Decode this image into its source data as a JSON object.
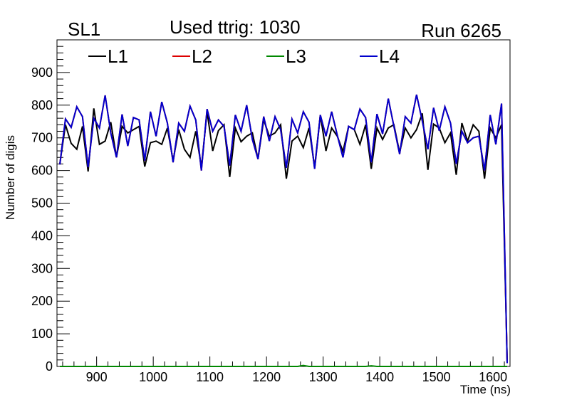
{
  "header": {
    "superlayer": "SL1",
    "title": "Used ttrig: 1030",
    "run": "Run 6265"
  },
  "chart_data": {
    "type": "line",
    "title": "Used ttrig: 1030",
    "xlabel": "Time (ns)",
    "ylabel": "Number of digis",
    "xlim": [
      830,
      1630
    ],
    "ylim": [
      0,
      1000
    ],
    "x_ticks": [
      900,
      1000,
      1100,
      1200,
      1300,
      1400,
      1500,
      1600
    ],
    "y_ticks": [
      0,
      100,
      200,
      300,
      400,
      500,
      600,
      700,
      800,
      900
    ],
    "grid": false,
    "legend_position": "top",
    "x": [
      835,
      845,
      855,
      865,
      875,
      885,
      895,
      905,
      915,
      925,
      935,
      945,
      955,
      965,
      975,
      985,
      995,
      1005,
      1015,
      1025,
      1035,
      1045,
      1055,
      1065,
      1075,
      1085,
      1095,
      1105,
      1115,
      1125,
      1135,
      1145,
      1155,
      1165,
      1175,
      1185,
      1195,
      1205,
      1215,
      1225,
      1235,
      1245,
      1255,
      1265,
      1275,
      1285,
      1295,
      1305,
      1315,
      1325,
      1335,
      1345,
      1355,
      1365,
      1375,
      1385,
      1395,
      1405,
      1415,
      1425,
      1435,
      1445,
      1455,
      1465,
      1475,
      1485,
      1495,
      1505,
      1515,
      1525,
      1535,
      1545,
      1555,
      1565,
      1575,
      1585,
      1595,
      1605,
      1615,
      1625
    ],
    "series": [
      {
        "name": "L1",
        "color": "#000000",
        "values": [
          620,
          740,
          683,
          665,
          735,
          597,
          790,
          680,
          690,
          748,
          640,
          735,
          715,
          725,
          735,
          612,
          685,
          690,
          680,
          730,
          630,
          725,
          665,
          640,
          720,
          610,
          780,
          660,
          722,
          740,
          580,
          730,
          688,
          705,
          715,
          635,
          755,
          705,
          715,
          740,
          575,
          690,
          705,
          670,
          730,
          610,
          770,
          660,
          730,
          705,
          658,
          735,
          725,
          680,
          740,
          605,
          730,
          695,
          730,
          740,
          655,
          730,
          700,
          725,
          775,
          602,
          742,
          730,
          685,
          715,
          587,
          745,
          690,
          740,
          720,
          575,
          730,
          700,
          740,
          15
        ]
      },
      {
        "name": "L2",
        "color": "#dd0000",
        "values": [
          618,
          758,
          732,
          795,
          765,
          610,
          760,
          730,
          830,
          715,
          640,
          772,
          675,
          762,
          755,
          630,
          780,
          705,
          810,
          745,
          625,
          745,
          720,
          797,
          755,
          600,
          788,
          720,
          755,
          735,
          615,
          770,
          720,
          800,
          695,
          635,
          765,
          690,
          765,
          725,
          608,
          757,
          715,
          780,
          748,
          605,
          770,
          705,
          780,
          708,
          640,
          735,
          725,
          788,
          762,
          625,
          773,
          712,
          820,
          735,
          650,
          765,
          745,
          832,
          752,
          665,
          792,
          722,
          795,
          745,
          620,
          720,
          685,
          700,
          705,
          600,
          770,
          680,
          805,
          10
        ]
      },
      {
        "name": "L3",
        "color": "#008800",
        "values": [
          0,
          0,
          0,
          0,
          0,
          0,
          0,
          0,
          0,
          0,
          0,
          0,
          0,
          0,
          0,
          0,
          0,
          0,
          0,
          0,
          0,
          0,
          0,
          0,
          0,
          0,
          0,
          0,
          0,
          0,
          0,
          0,
          0,
          0,
          0,
          0,
          0,
          0,
          0,
          0,
          0,
          0,
          0,
          3,
          0,
          0,
          0,
          0,
          0,
          0,
          0,
          0,
          0,
          0,
          0,
          2,
          0,
          0,
          0,
          0,
          0,
          0,
          0,
          0,
          0,
          0,
          0,
          0,
          0,
          0,
          0,
          0,
          0,
          0,
          0,
          0,
          0,
          0,
          0,
          0
        ]
      },
      {
        "name": "L4",
        "color": "#0000cc",
        "values": [
          618,
          758,
          732,
          795,
          765,
          610,
          760,
          730,
          830,
          715,
          640,
          772,
          675,
          762,
          755,
          630,
          780,
          705,
          810,
          745,
          625,
          745,
          720,
          797,
          755,
          600,
          788,
          720,
          755,
          735,
          615,
          770,
          720,
          800,
          695,
          635,
          765,
          690,
          765,
          725,
          608,
          757,
          715,
          780,
          748,
          605,
          770,
          705,
          780,
          708,
          640,
          735,
          725,
          788,
          762,
          625,
          773,
          712,
          820,
          735,
          650,
          765,
          745,
          832,
          752,
          665,
          792,
          722,
          795,
          745,
          620,
          720,
          685,
          700,
          705,
          600,
          770,
          680,
          805,
          10
        ]
      }
    ]
  }
}
